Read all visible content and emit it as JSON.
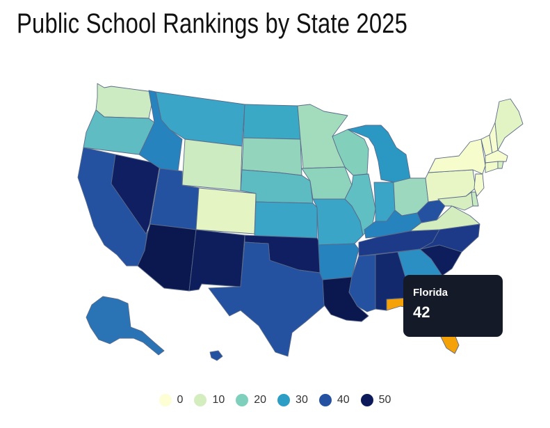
{
  "title": "Public School Rankings by State 2025",
  "tooltip": {
    "state": "Florida",
    "value": "42"
  },
  "legend": [
    {
      "label": "0",
      "color": "#fdfed4"
    },
    {
      "label": "10",
      "color": "#d3edbf"
    },
    {
      "label": "20",
      "color": "#7ecfbb"
    },
    {
      "label": "30",
      "color": "#2c9dc4"
    },
    {
      "label": "40",
      "color": "#2452a0"
    },
    {
      "label": "50",
      "color": "#0d1a5a"
    }
  ],
  "highlight_color": "#f5a108",
  "states": [
    {
      "name": "Washington",
      "color": "#ccebc2"
    },
    {
      "name": "Oregon",
      "color": "#5fbcc2"
    },
    {
      "name": "California",
      "color": "#2452a0"
    },
    {
      "name": "Nevada",
      "color": "#0f1f62"
    },
    {
      "name": "Idaho",
      "color": "#2683bd"
    },
    {
      "name": "Montana",
      "color": "#3aa5c6"
    },
    {
      "name": "Wyoming",
      "color": "#cdebc0"
    },
    {
      "name": "Utah",
      "color": "#2452a0"
    },
    {
      "name": "Arizona",
      "color": "#0b1850"
    },
    {
      "name": "Colorado",
      "color": "#e4f4c3"
    },
    {
      "name": "New Mexico",
      "color": "#0e1e5c"
    },
    {
      "name": "North Dakota",
      "color": "#3aa9c6"
    },
    {
      "name": "South Dakota",
      "color": "#92d4bc"
    },
    {
      "name": "Nebraska",
      "color": "#5cbcc2"
    },
    {
      "name": "Kansas",
      "color": "#3aa5c6"
    },
    {
      "name": "Oklahoma",
      "color": "#0f1f62"
    },
    {
      "name": "Texas",
      "color": "#2452a0"
    },
    {
      "name": "Minnesota",
      "color": "#a3dbbd"
    },
    {
      "name": "Iowa",
      "color": "#8ed3bc"
    },
    {
      "name": "Missouri",
      "color": "#3aa5c6"
    },
    {
      "name": "Arkansas",
      "color": "#2683bd"
    },
    {
      "name": "Louisiana",
      "color": "#0b1850"
    },
    {
      "name": "Wisconsin",
      "color": "#82cfbc"
    },
    {
      "name": "Illinois",
      "color": "#60bfc2"
    },
    {
      "name": "Michigan",
      "color": "#2b98c4"
    },
    {
      "name": "Indiana",
      "color": "#3aa5c6"
    },
    {
      "name": "Ohio",
      "color": "#9bd8bd"
    },
    {
      "name": "Kentucky",
      "color": "#2683bd"
    },
    {
      "name": "Tennessee",
      "color": "#1d3a88"
    },
    {
      "name": "Mississippi",
      "color": "#2452a0"
    },
    {
      "name": "Alabama",
      "color": "#13296e"
    },
    {
      "name": "Georgia",
      "color": "#2b8fc4"
    },
    {
      "name": "Florida",
      "color": "#f5a108"
    },
    {
      "name": "South Carolina",
      "color": "#0e1e5c"
    },
    {
      "name": "North Carolina",
      "color": "#1d3a88"
    },
    {
      "name": "Virginia",
      "color": "#d3edbf"
    },
    {
      "name": "West Virginia",
      "color": "#2452a0"
    },
    {
      "name": "Pennsylvania",
      "color": "#e8f6c6"
    },
    {
      "name": "New York",
      "color": "#f6fccc"
    },
    {
      "name": "Vermont",
      "color": "#f4fbcd"
    },
    {
      "name": "New Hampshire",
      "color": "#f6fcce"
    },
    {
      "name": "Maine",
      "color": "#e3f4c4"
    },
    {
      "name": "Massachusetts",
      "color": "#f6fcce"
    },
    {
      "name": "Connecticut",
      "color": "#f1fac9"
    },
    {
      "name": "Rhode Island",
      "color": "#d8efc0"
    },
    {
      "name": "New Jersey",
      "color": "#f4fbcc"
    },
    {
      "name": "Delaware",
      "color": "#c8e9c0"
    },
    {
      "name": "Maryland",
      "color": "#d6eec0"
    },
    {
      "name": "Alaska",
      "color": "#2a74b6"
    },
    {
      "name": "Hawaii",
      "color": "#2452a0"
    }
  ]
}
